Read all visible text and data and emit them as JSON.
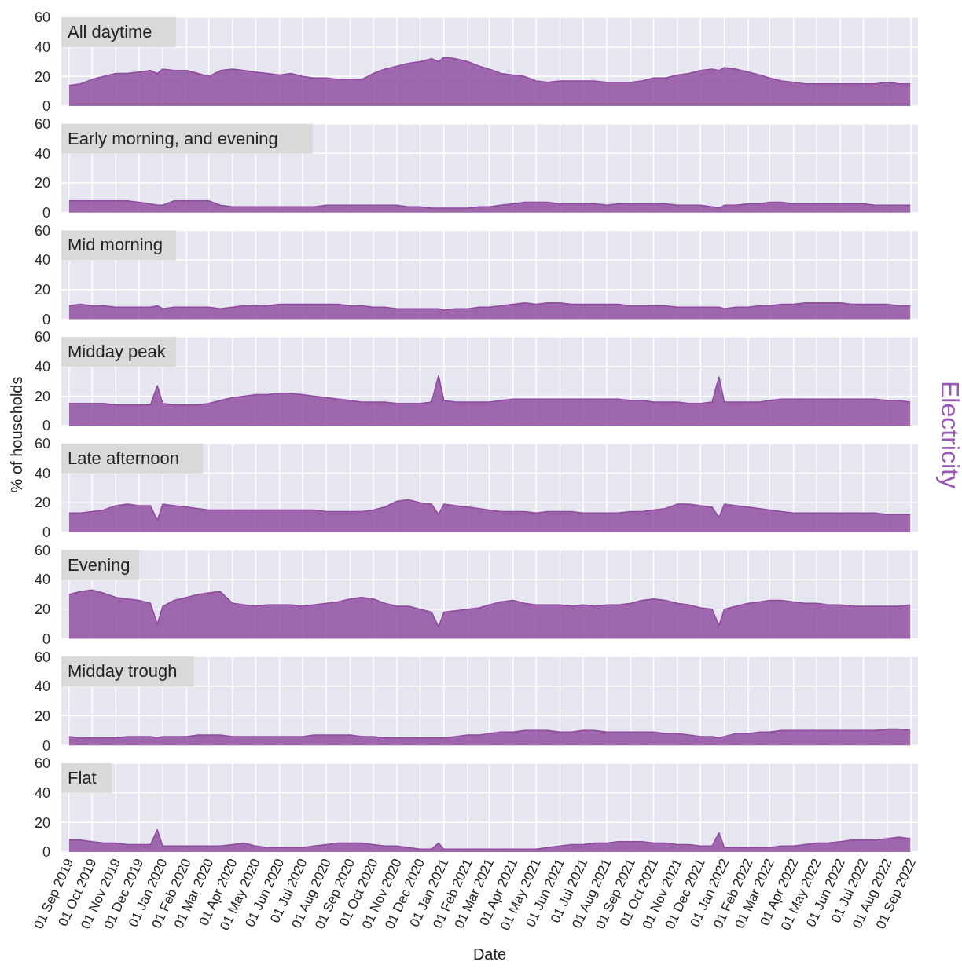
{
  "chart_data": [
    {
      "type": "area",
      "title": "All daytime",
      "grid": true,
      "tick_labels": "y",
      "ylim": [
        0,
        60
      ],
      "yticks": [
        0,
        20,
        40,
        60
      ],
      "xlim": [
        "2019-08-22",
        "2022-09-10"
      ],
      "xticks": [
        "2019-09-01",
        "2019-10-01",
        "2019-11-01",
        "2019-12-01",
        "2020-01-01",
        "2020-02-01",
        "2020-03-01",
        "2020-04-01",
        "2020-05-01",
        "2020-06-01",
        "2020-07-01",
        "2020-08-01",
        "2020-09-01",
        "2020-10-01",
        "2020-11-01",
        "2020-12-01",
        "2021-01-01",
        "2021-02-01",
        "2021-03-01",
        "2021-04-01",
        "2021-05-01",
        "2021-06-01",
        "2021-07-01",
        "2021-08-01",
        "2021-09-01",
        "2021-10-01",
        "2021-11-01",
        "2021-12-01",
        "2022-01-01",
        "2022-02-01",
        "2022-03-01",
        "2022-04-01",
        "2022-05-01",
        "2022-06-01",
        "2022-07-01",
        "2022-08-01",
        "2022-09-01"
      ],
      "x": [
        "2019-09-01",
        "2019-09-16",
        "2019-10-01",
        "2019-10-16",
        "2019-11-01",
        "2019-11-16",
        "2019-12-01",
        "2019-12-16",
        "2019-12-25",
        "2020-01-01",
        "2020-01-16",
        "2020-02-01",
        "2020-02-16",
        "2020-03-01",
        "2020-03-16",
        "2020-04-01",
        "2020-04-16",
        "2020-05-01",
        "2020-05-16",
        "2020-06-01",
        "2020-06-16",
        "2020-07-01",
        "2020-07-16",
        "2020-08-01",
        "2020-08-16",
        "2020-09-01",
        "2020-09-16",
        "2020-10-01",
        "2020-10-16",
        "2020-11-01",
        "2020-11-16",
        "2020-12-01",
        "2020-12-16",
        "2020-12-25",
        "2021-01-01",
        "2021-01-16",
        "2021-02-01",
        "2021-02-16",
        "2021-03-01",
        "2021-03-16",
        "2021-04-01",
        "2021-04-16",
        "2021-05-01",
        "2021-05-16",
        "2021-06-01",
        "2021-06-16",
        "2021-07-01",
        "2021-07-16",
        "2021-08-01",
        "2021-08-16",
        "2021-09-01",
        "2021-09-16",
        "2021-10-01",
        "2021-10-16",
        "2021-11-01",
        "2021-11-16",
        "2021-12-01",
        "2021-12-16",
        "2021-12-25",
        "2022-01-01",
        "2022-01-16",
        "2022-02-01",
        "2022-02-16",
        "2022-03-01",
        "2022-03-16",
        "2022-04-01",
        "2022-04-16",
        "2022-05-01",
        "2022-05-16",
        "2022-06-01",
        "2022-06-16",
        "2022-07-01",
        "2022-07-16",
        "2022-08-01",
        "2022-08-16",
        "2022-08-31"
      ],
      "series": [
        {
          "color": "#8e4a9e",
          "values": [
            14,
            15,
            18,
            20,
            22,
            22,
            23,
            24,
            22,
            25,
            24,
            24,
            22,
            20,
            24,
            25,
            24,
            23,
            22,
            21,
            22,
            20,
            19,
            19,
            18,
            18,
            18,
            22,
            25,
            27,
            29,
            30,
            32,
            30,
            33,
            32,
            30,
            27,
            25,
            22,
            21,
            20,
            17,
            16,
            17,
            17,
            17,
            17,
            16,
            16,
            16,
            17,
            19,
            19,
            21,
            22,
            24,
            25,
            24,
            26,
            25,
            23,
            21,
            19,
            17,
            16,
            15,
            15,
            15,
            15,
            15,
            15,
            15,
            16,
            15,
            15
          ]
        }
      ]
    },
    {
      "type": "area",
      "title": "Early morning, and evening",
      "grid": true,
      "tick_labels": "y",
      "ylim": [
        0,
        60
      ],
      "yticks": [
        0,
        20,
        40,
        60
      ],
      "xlim": [
        "2019-08-22",
        "2022-09-10"
      ],
      "xticks": [
        "2019-09-01",
        "2019-10-01",
        "2019-11-01",
        "2019-12-01",
        "2020-01-01",
        "2020-02-01",
        "2020-03-01",
        "2020-04-01",
        "2020-05-01",
        "2020-06-01",
        "2020-07-01",
        "2020-08-01",
        "2020-09-01",
        "2020-10-01",
        "2020-11-01",
        "2020-12-01",
        "2021-01-01",
        "2021-02-01",
        "2021-03-01",
        "2021-04-01",
        "2021-05-01",
        "2021-06-01",
        "2021-07-01",
        "2021-08-01",
        "2021-09-01",
        "2021-10-01",
        "2021-11-01",
        "2021-12-01",
        "2022-01-01",
        "2022-02-01",
        "2022-03-01",
        "2022-04-01",
        "2022-05-01",
        "2022-06-01",
        "2022-07-01",
        "2022-08-01",
        "2022-09-01"
      ],
      "x": [
        "2019-09-01",
        "2019-09-16",
        "2019-10-01",
        "2019-10-16",
        "2019-11-01",
        "2019-11-16",
        "2019-12-01",
        "2019-12-16",
        "2019-12-25",
        "2020-01-01",
        "2020-01-16",
        "2020-02-01",
        "2020-02-16",
        "2020-03-01",
        "2020-03-16",
        "2020-04-01",
        "2020-04-16",
        "2020-05-01",
        "2020-05-16",
        "2020-06-01",
        "2020-06-16",
        "2020-07-01",
        "2020-07-16",
        "2020-08-01",
        "2020-08-16",
        "2020-09-01",
        "2020-09-16",
        "2020-10-01",
        "2020-10-16",
        "2020-11-01",
        "2020-11-16",
        "2020-12-01",
        "2020-12-16",
        "2020-12-25",
        "2021-01-01",
        "2021-01-16",
        "2021-02-01",
        "2021-02-16",
        "2021-03-01",
        "2021-03-16",
        "2021-04-01",
        "2021-04-16",
        "2021-05-01",
        "2021-05-16",
        "2021-06-01",
        "2021-06-16",
        "2021-07-01",
        "2021-07-16",
        "2021-08-01",
        "2021-08-16",
        "2021-09-01",
        "2021-09-16",
        "2021-10-01",
        "2021-10-16",
        "2021-11-01",
        "2021-11-16",
        "2021-12-01",
        "2021-12-16",
        "2021-12-25",
        "2022-01-01",
        "2022-01-16",
        "2022-02-01",
        "2022-02-16",
        "2022-03-01",
        "2022-03-16",
        "2022-04-01",
        "2022-04-16",
        "2022-05-01",
        "2022-05-16",
        "2022-06-01",
        "2022-06-16",
        "2022-07-01",
        "2022-07-16",
        "2022-08-01",
        "2022-08-16",
        "2022-08-31"
      ],
      "series": [
        {
          "color": "#8e4a9e",
          "values": [
            8,
            8,
            8,
            8,
            8,
            8,
            7,
            6,
            5,
            5,
            8,
            8,
            8,
            8,
            5,
            4,
            4,
            4,
            4,
            4,
            4,
            4,
            4,
            5,
            5,
            5,
            5,
            5,
            5,
            5,
            4,
            4,
            3,
            3,
            3,
            3,
            3,
            4,
            4,
            5,
            6,
            7,
            7,
            7,
            6,
            6,
            6,
            6,
            5,
            6,
            6,
            6,
            6,
            6,
            5,
            5,
            5,
            4,
            3,
            5,
            5,
            6,
            6,
            7,
            7,
            6,
            6,
            6,
            6,
            6,
            6,
            6,
            5,
            5,
            5,
            5
          ]
        }
      ]
    },
    {
      "type": "area",
      "title": "Mid morning",
      "grid": true,
      "tick_labels": "y",
      "ylim": [
        0,
        60
      ],
      "yticks": [
        0,
        20,
        40,
        60
      ],
      "xlim": [
        "2019-08-22",
        "2022-09-10"
      ],
      "xticks": [
        "2019-09-01",
        "2019-10-01",
        "2019-11-01",
        "2019-12-01",
        "2020-01-01",
        "2020-02-01",
        "2020-03-01",
        "2020-04-01",
        "2020-05-01",
        "2020-06-01",
        "2020-07-01",
        "2020-08-01",
        "2020-09-01",
        "2020-10-01",
        "2020-11-01",
        "2020-12-01",
        "2021-01-01",
        "2021-02-01",
        "2021-03-01",
        "2021-04-01",
        "2021-05-01",
        "2021-06-01",
        "2021-07-01",
        "2021-08-01",
        "2021-09-01",
        "2021-10-01",
        "2021-11-01",
        "2021-12-01",
        "2022-01-01",
        "2022-02-01",
        "2022-03-01",
        "2022-04-01",
        "2022-05-01",
        "2022-06-01",
        "2022-07-01",
        "2022-08-01",
        "2022-09-01"
      ],
      "x": [
        "2019-09-01",
        "2019-09-16",
        "2019-10-01",
        "2019-10-16",
        "2019-11-01",
        "2019-11-16",
        "2019-12-01",
        "2019-12-16",
        "2019-12-25",
        "2020-01-01",
        "2020-01-16",
        "2020-02-01",
        "2020-02-16",
        "2020-03-01",
        "2020-03-16",
        "2020-04-01",
        "2020-04-16",
        "2020-05-01",
        "2020-05-16",
        "2020-06-01",
        "2020-06-16",
        "2020-07-01",
        "2020-07-16",
        "2020-08-01",
        "2020-08-16",
        "2020-09-01",
        "2020-09-16",
        "2020-10-01",
        "2020-10-16",
        "2020-11-01",
        "2020-11-16",
        "2020-12-01",
        "2020-12-16",
        "2020-12-25",
        "2021-01-01",
        "2021-01-16",
        "2021-02-01",
        "2021-02-16",
        "2021-03-01",
        "2021-03-16",
        "2021-04-01",
        "2021-04-16",
        "2021-05-01",
        "2021-05-16",
        "2021-06-01",
        "2021-06-16",
        "2021-07-01",
        "2021-07-16",
        "2021-08-01",
        "2021-08-16",
        "2021-09-01",
        "2021-09-16",
        "2021-10-01",
        "2021-10-16",
        "2021-11-01",
        "2021-11-16",
        "2021-12-01",
        "2021-12-16",
        "2021-12-25",
        "2022-01-01",
        "2022-01-16",
        "2022-02-01",
        "2022-02-16",
        "2022-03-01",
        "2022-03-16",
        "2022-04-01",
        "2022-04-16",
        "2022-05-01",
        "2022-05-16",
        "2022-06-01",
        "2022-06-16",
        "2022-07-01",
        "2022-07-16",
        "2022-08-01",
        "2022-08-16",
        "2022-08-31"
      ],
      "series": [
        {
          "color": "#8e4a9e",
          "values": [
            9,
            10,
            9,
            9,
            8,
            8,
            8,
            8,
            9,
            7,
            8,
            8,
            8,
            8,
            7,
            8,
            9,
            9,
            9,
            10,
            10,
            10,
            10,
            10,
            10,
            9,
            9,
            8,
            8,
            7,
            7,
            7,
            7,
            7,
            6,
            7,
            7,
            8,
            8,
            9,
            10,
            11,
            10,
            11,
            11,
            10,
            10,
            10,
            10,
            10,
            9,
            9,
            9,
            9,
            8,
            8,
            8,
            8,
            8,
            7,
            8,
            8,
            9,
            9,
            10,
            10,
            11,
            11,
            11,
            11,
            10,
            10,
            10,
            10,
            9,
            9
          ]
        }
      ]
    },
    {
      "type": "area",
      "title": "Midday peak",
      "ylabel": "% of households",
      "y2label": "Electricity",
      "grid": true,
      "tick_labels": "y",
      "ylim": [
        0,
        60
      ],
      "yticks": [
        0,
        20,
        40,
        60
      ],
      "xlim": [
        "2019-08-22",
        "2022-09-10"
      ],
      "xticks": [
        "2019-09-01",
        "2019-10-01",
        "2019-11-01",
        "2019-12-01",
        "2020-01-01",
        "2020-02-01",
        "2020-03-01",
        "2020-04-01",
        "2020-05-01",
        "2020-06-01",
        "2020-07-01",
        "2020-08-01",
        "2020-09-01",
        "2020-10-01",
        "2020-11-01",
        "2020-12-01",
        "2021-01-01",
        "2021-02-01",
        "2021-03-01",
        "2021-04-01",
        "2021-05-01",
        "2021-06-01",
        "2021-07-01",
        "2021-08-01",
        "2021-09-01",
        "2021-10-01",
        "2021-11-01",
        "2021-12-01",
        "2022-01-01",
        "2022-02-01",
        "2022-03-01",
        "2022-04-01",
        "2022-05-01",
        "2022-06-01",
        "2022-07-01",
        "2022-08-01",
        "2022-09-01"
      ],
      "x": [
        "2019-09-01",
        "2019-09-16",
        "2019-10-01",
        "2019-10-16",
        "2019-11-01",
        "2019-11-16",
        "2019-12-01",
        "2019-12-16",
        "2019-12-25",
        "2020-01-01",
        "2020-01-16",
        "2020-02-01",
        "2020-02-16",
        "2020-03-01",
        "2020-03-16",
        "2020-04-01",
        "2020-04-16",
        "2020-05-01",
        "2020-05-16",
        "2020-06-01",
        "2020-06-16",
        "2020-07-01",
        "2020-07-16",
        "2020-08-01",
        "2020-08-16",
        "2020-09-01",
        "2020-09-16",
        "2020-10-01",
        "2020-10-16",
        "2020-11-01",
        "2020-11-16",
        "2020-12-01",
        "2020-12-16",
        "2020-12-25",
        "2021-01-01",
        "2021-01-16",
        "2021-02-01",
        "2021-02-16",
        "2021-03-01",
        "2021-03-16",
        "2021-04-01",
        "2021-04-16",
        "2021-05-01",
        "2021-05-16",
        "2021-06-01",
        "2021-06-16",
        "2021-07-01",
        "2021-07-16",
        "2021-08-01",
        "2021-08-16",
        "2021-09-01",
        "2021-09-16",
        "2021-10-01",
        "2021-10-16",
        "2021-11-01",
        "2021-11-16",
        "2021-12-01",
        "2021-12-16",
        "2021-12-25",
        "2022-01-01",
        "2022-01-16",
        "2022-02-01",
        "2022-02-16",
        "2022-03-01",
        "2022-03-16",
        "2022-04-01",
        "2022-04-16",
        "2022-05-01",
        "2022-05-16",
        "2022-06-01",
        "2022-06-16",
        "2022-07-01",
        "2022-07-16",
        "2022-08-01",
        "2022-08-16",
        "2022-08-31"
      ],
      "series": [
        {
          "color": "#8e4a9e",
          "values": [
            15,
            15,
            15,
            15,
            14,
            14,
            14,
            14,
            27,
            15,
            14,
            14,
            14,
            15,
            17,
            19,
            20,
            21,
            21,
            22,
            22,
            21,
            20,
            19,
            18,
            17,
            16,
            16,
            16,
            15,
            15,
            15,
            16,
            34,
            17,
            16,
            16,
            16,
            16,
            17,
            18,
            18,
            18,
            18,
            18,
            18,
            18,
            18,
            18,
            18,
            17,
            17,
            16,
            16,
            16,
            15,
            15,
            16,
            33,
            16,
            16,
            16,
            16,
            17,
            18,
            18,
            18,
            18,
            18,
            18,
            18,
            18,
            18,
            17,
            17,
            16
          ]
        }
      ]
    },
    {
      "type": "area",
      "title": "Late afternoon",
      "grid": true,
      "tick_labels": "y",
      "ylim": [
        0,
        60
      ],
      "yticks": [
        0,
        20,
        40,
        60
      ],
      "xlim": [
        "2019-08-22",
        "2022-09-10"
      ],
      "xticks": [
        "2019-09-01",
        "2019-10-01",
        "2019-11-01",
        "2019-12-01",
        "2020-01-01",
        "2020-02-01",
        "2020-03-01",
        "2020-04-01",
        "2020-05-01",
        "2020-06-01",
        "2020-07-01",
        "2020-08-01",
        "2020-09-01",
        "2020-10-01",
        "2020-11-01",
        "2020-12-01",
        "2021-01-01",
        "2021-02-01",
        "2021-03-01",
        "2021-04-01",
        "2021-05-01",
        "2021-06-01",
        "2021-07-01",
        "2021-08-01",
        "2021-09-01",
        "2021-10-01",
        "2021-11-01",
        "2021-12-01",
        "2022-01-01",
        "2022-02-01",
        "2022-03-01",
        "2022-04-01",
        "2022-05-01",
        "2022-06-01",
        "2022-07-01",
        "2022-08-01",
        "2022-09-01"
      ],
      "x": [
        "2019-09-01",
        "2019-09-16",
        "2019-10-01",
        "2019-10-16",
        "2019-11-01",
        "2019-11-16",
        "2019-12-01",
        "2019-12-16",
        "2019-12-25",
        "2020-01-01",
        "2020-01-16",
        "2020-02-01",
        "2020-02-16",
        "2020-03-01",
        "2020-03-16",
        "2020-04-01",
        "2020-04-16",
        "2020-05-01",
        "2020-05-16",
        "2020-06-01",
        "2020-06-16",
        "2020-07-01",
        "2020-07-16",
        "2020-08-01",
        "2020-08-16",
        "2020-09-01",
        "2020-09-16",
        "2020-10-01",
        "2020-10-16",
        "2020-11-01",
        "2020-11-16",
        "2020-12-01",
        "2020-12-16",
        "2020-12-25",
        "2021-01-01",
        "2021-01-16",
        "2021-02-01",
        "2021-02-16",
        "2021-03-01",
        "2021-03-16",
        "2021-04-01",
        "2021-04-16",
        "2021-05-01",
        "2021-05-16",
        "2021-06-01",
        "2021-06-16",
        "2021-07-01",
        "2021-07-16",
        "2021-08-01",
        "2021-08-16",
        "2021-09-01",
        "2021-09-16",
        "2021-10-01",
        "2021-10-16",
        "2021-11-01",
        "2021-11-16",
        "2021-12-01",
        "2021-12-16",
        "2021-12-25",
        "2022-01-01",
        "2022-01-16",
        "2022-02-01",
        "2022-02-16",
        "2022-03-01",
        "2022-03-16",
        "2022-04-01",
        "2022-04-16",
        "2022-05-01",
        "2022-05-16",
        "2022-06-01",
        "2022-06-16",
        "2022-07-01",
        "2022-07-16",
        "2022-08-01",
        "2022-08-16",
        "2022-08-31"
      ],
      "series": [
        {
          "color": "#8e4a9e",
          "values": [
            13,
            13,
            14,
            15,
            18,
            19,
            18,
            18,
            8,
            19,
            18,
            17,
            16,
            15,
            15,
            15,
            15,
            15,
            15,
            15,
            15,
            15,
            15,
            14,
            14,
            14,
            14,
            15,
            17,
            21,
            22,
            20,
            19,
            12,
            19,
            18,
            17,
            16,
            15,
            14,
            14,
            14,
            13,
            14,
            14,
            14,
            13,
            13,
            13,
            13,
            14,
            14,
            15,
            16,
            19,
            19,
            18,
            17,
            10,
            19,
            18,
            17,
            16,
            15,
            14,
            13,
            13,
            13,
            13,
            13,
            13,
            13,
            13,
            12,
            12,
            12
          ]
        }
      ]
    },
    {
      "type": "area",
      "title": "Evening",
      "grid": true,
      "tick_labels": "y",
      "ylim": [
        0,
        60
      ],
      "yticks": [
        0,
        20,
        40,
        60
      ],
      "xlim": [
        "2019-08-22",
        "2022-09-10"
      ],
      "xticks": [
        "2019-09-01",
        "2019-10-01",
        "2019-11-01",
        "2019-12-01",
        "2020-01-01",
        "2020-02-01",
        "2020-03-01",
        "2020-04-01",
        "2020-05-01",
        "2020-06-01",
        "2020-07-01",
        "2020-08-01",
        "2020-09-01",
        "2020-10-01",
        "2020-11-01",
        "2020-12-01",
        "2021-01-01",
        "2021-02-01",
        "2021-03-01",
        "2021-04-01",
        "2021-05-01",
        "2021-06-01",
        "2021-07-01",
        "2021-08-01",
        "2021-09-01",
        "2021-10-01",
        "2021-11-01",
        "2021-12-01",
        "2022-01-01",
        "2022-02-01",
        "2022-03-01",
        "2022-04-01",
        "2022-05-01",
        "2022-06-01",
        "2022-07-01",
        "2022-08-01",
        "2022-09-01"
      ],
      "x": [
        "2019-09-01",
        "2019-09-16",
        "2019-10-01",
        "2019-10-16",
        "2019-11-01",
        "2019-11-16",
        "2019-12-01",
        "2019-12-16",
        "2019-12-25",
        "2020-01-01",
        "2020-01-16",
        "2020-02-01",
        "2020-02-16",
        "2020-03-01",
        "2020-03-16",
        "2020-04-01",
        "2020-04-16",
        "2020-05-01",
        "2020-05-16",
        "2020-06-01",
        "2020-06-16",
        "2020-07-01",
        "2020-07-16",
        "2020-08-01",
        "2020-08-16",
        "2020-09-01",
        "2020-09-16",
        "2020-10-01",
        "2020-10-16",
        "2020-11-01",
        "2020-11-16",
        "2020-12-01",
        "2020-12-16",
        "2020-12-25",
        "2021-01-01",
        "2021-01-16",
        "2021-02-01",
        "2021-02-16",
        "2021-03-01",
        "2021-03-16",
        "2021-04-01",
        "2021-04-16",
        "2021-05-01",
        "2021-05-16",
        "2021-06-01",
        "2021-06-16",
        "2021-07-01",
        "2021-07-16",
        "2021-08-01",
        "2021-08-16",
        "2021-09-01",
        "2021-09-16",
        "2021-10-01",
        "2021-10-16",
        "2021-11-01",
        "2021-11-16",
        "2021-12-01",
        "2021-12-16",
        "2021-12-25",
        "2022-01-01",
        "2022-01-16",
        "2022-02-01",
        "2022-02-16",
        "2022-03-01",
        "2022-03-16",
        "2022-04-01",
        "2022-04-16",
        "2022-05-01",
        "2022-05-16",
        "2022-06-01",
        "2022-06-16",
        "2022-07-01",
        "2022-07-16",
        "2022-08-01",
        "2022-08-16",
        "2022-08-31"
      ],
      "series": [
        {
          "color": "#8e4a9e",
          "values": [
            30,
            32,
            33,
            31,
            28,
            27,
            26,
            24,
            10,
            22,
            26,
            28,
            30,
            31,
            32,
            24,
            23,
            22,
            23,
            23,
            23,
            22,
            23,
            24,
            25,
            27,
            28,
            27,
            24,
            22,
            22,
            20,
            18,
            8,
            18,
            19,
            20,
            21,
            23,
            25,
            26,
            24,
            23,
            23,
            23,
            22,
            23,
            22,
            23,
            23,
            24,
            26,
            27,
            26,
            24,
            23,
            21,
            20,
            9,
            20,
            22,
            24,
            25,
            26,
            26,
            25,
            24,
            24,
            23,
            23,
            22,
            22,
            22,
            22,
            22,
            23
          ]
        }
      ]
    },
    {
      "type": "area",
      "title": "Midday trough",
      "grid": true,
      "tick_labels": "y",
      "ylim": [
        0,
        60
      ],
      "yticks": [
        0,
        20,
        40,
        60
      ],
      "xlim": [
        "2019-08-22",
        "2022-09-10"
      ],
      "xticks": [
        "2019-09-01",
        "2019-10-01",
        "2019-11-01",
        "2019-12-01",
        "2020-01-01",
        "2020-02-01",
        "2020-03-01",
        "2020-04-01",
        "2020-05-01",
        "2020-06-01",
        "2020-07-01",
        "2020-08-01",
        "2020-09-01",
        "2020-10-01",
        "2020-11-01",
        "2020-12-01",
        "2021-01-01",
        "2021-02-01",
        "2021-03-01",
        "2021-04-01",
        "2021-05-01",
        "2021-06-01",
        "2021-07-01",
        "2021-08-01",
        "2021-09-01",
        "2021-10-01",
        "2021-11-01",
        "2021-12-01",
        "2022-01-01",
        "2022-02-01",
        "2022-03-01",
        "2022-04-01",
        "2022-05-01",
        "2022-06-01",
        "2022-07-01",
        "2022-08-01",
        "2022-09-01"
      ],
      "x": [
        "2019-09-01",
        "2019-09-16",
        "2019-10-01",
        "2019-10-16",
        "2019-11-01",
        "2019-11-16",
        "2019-12-01",
        "2019-12-16",
        "2019-12-25",
        "2020-01-01",
        "2020-01-16",
        "2020-02-01",
        "2020-02-16",
        "2020-03-01",
        "2020-03-16",
        "2020-04-01",
        "2020-04-16",
        "2020-05-01",
        "2020-05-16",
        "2020-06-01",
        "2020-06-16",
        "2020-07-01",
        "2020-07-16",
        "2020-08-01",
        "2020-08-16",
        "2020-09-01",
        "2020-09-16",
        "2020-10-01",
        "2020-10-16",
        "2020-11-01",
        "2020-11-16",
        "2020-12-01",
        "2020-12-16",
        "2020-12-25",
        "2021-01-01",
        "2021-01-16",
        "2021-02-01",
        "2021-02-16",
        "2021-03-01",
        "2021-03-16",
        "2021-04-01",
        "2021-04-16",
        "2021-05-01",
        "2021-05-16",
        "2021-06-01",
        "2021-06-16",
        "2021-07-01",
        "2021-07-16",
        "2021-08-01",
        "2021-08-16",
        "2021-09-01",
        "2021-09-16",
        "2021-10-01",
        "2021-10-16",
        "2021-11-01",
        "2021-11-16",
        "2021-12-01",
        "2021-12-16",
        "2021-12-25",
        "2022-01-01",
        "2022-01-16",
        "2022-02-01",
        "2022-02-16",
        "2022-03-01",
        "2022-03-16",
        "2022-04-01",
        "2022-04-16",
        "2022-05-01",
        "2022-05-16",
        "2022-06-01",
        "2022-06-16",
        "2022-07-01",
        "2022-07-16",
        "2022-08-01",
        "2022-08-16",
        "2022-08-31"
      ],
      "series": [
        {
          "color": "#8e4a9e",
          "values": [
            6,
            5,
            5,
            5,
            5,
            6,
            6,
            6,
            5,
            6,
            6,
            6,
            7,
            7,
            7,
            6,
            6,
            6,
            6,
            6,
            6,
            6,
            7,
            7,
            7,
            7,
            6,
            6,
            5,
            5,
            5,
            5,
            5,
            5,
            5,
            6,
            7,
            7,
            8,
            9,
            9,
            10,
            10,
            10,
            9,
            9,
            10,
            10,
            9,
            9,
            9,
            9,
            9,
            8,
            8,
            7,
            6,
            6,
            5,
            6,
            8,
            8,
            9,
            9,
            10,
            10,
            10,
            10,
            10,
            10,
            10,
            10,
            10,
            11,
            11,
            10
          ]
        }
      ]
    },
    {
      "type": "area",
      "title": "Flat",
      "xlabel": "Date",
      "grid": true,
      "ylim": [
        0,
        60
      ],
      "yticks": [
        0,
        20,
        40,
        60
      ],
      "xlim": [
        "2019-08-22",
        "2022-09-10"
      ],
      "xticks": [
        {
          "value": "2019-09-01",
          "label": "01 Sep 2019"
        },
        {
          "value": "2019-10-01",
          "label": "01 Oct 2019"
        },
        {
          "value": "2019-11-01",
          "label": "01 Nov 2019"
        },
        {
          "value": "2019-12-01",
          "label": "01 Dec 2019"
        },
        {
          "value": "2020-01-01",
          "label": "01 Jan 2020"
        },
        {
          "value": "2020-02-01",
          "label": "01 Feb 2020"
        },
        {
          "value": "2020-03-01",
          "label": "01 Mar 2020"
        },
        {
          "value": "2020-04-01",
          "label": "01 Apr 2020"
        },
        {
          "value": "2020-05-01",
          "label": "01 May 2020"
        },
        {
          "value": "2020-06-01",
          "label": "01 Jun 2020"
        },
        {
          "value": "2020-07-01",
          "label": "01 Jul 2020"
        },
        {
          "value": "2020-08-01",
          "label": "01 Aug 2020"
        },
        {
          "value": "2020-09-01",
          "label": "01 Sep 2020"
        },
        {
          "value": "2020-10-01",
          "label": "01 Oct 2020"
        },
        {
          "value": "2020-11-01",
          "label": "01 Nov 2020"
        },
        {
          "value": "2020-12-01",
          "label": "01 Dec 2020"
        },
        {
          "value": "2021-01-01",
          "label": "01 Jan 2021"
        },
        {
          "value": "2021-02-01",
          "label": "01 Feb 2021"
        },
        {
          "value": "2021-03-01",
          "label": "01 Mar 2021"
        },
        {
          "value": "2021-04-01",
          "label": "01 Apr 2021"
        },
        {
          "value": "2021-05-01",
          "label": "01 May 2021"
        },
        {
          "value": "2021-06-01",
          "label": "01 Jun 2021"
        },
        {
          "value": "2021-07-01",
          "label": "01 Jul 2021"
        },
        {
          "value": "2021-08-01",
          "label": "01 Aug 2021"
        },
        {
          "value": "2021-09-01",
          "label": "01 Sep 2021"
        },
        {
          "value": "2021-10-01",
          "label": "01 Oct 2021"
        },
        {
          "value": "2021-11-01",
          "label": "01 Nov 2021"
        },
        {
          "value": "2021-12-01",
          "label": "01 Dec 2021"
        },
        {
          "value": "2022-01-01",
          "label": "01 Jan 2022"
        },
        {
          "value": "2022-02-01",
          "label": "01 Feb 2022"
        },
        {
          "value": "2022-03-01",
          "label": "01 Mar 2022"
        },
        {
          "value": "2022-04-01",
          "label": "01 Apr 2022"
        },
        {
          "value": "2022-05-01",
          "label": "01 May 2022"
        },
        {
          "value": "2022-06-01",
          "label": "01 Jun 2022"
        },
        {
          "value": "2022-07-01",
          "label": "01 Jul 2022"
        },
        {
          "value": "2022-08-01",
          "label": "01 Aug 2022"
        },
        {
          "value": "2022-09-01",
          "label": "01 Sep 2022"
        }
      ],
      "x": [
        "2019-09-01",
        "2019-09-16",
        "2019-10-01",
        "2019-10-16",
        "2019-11-01",
        "2019-11-16",
        "2019-12-01",
        "2019-12-16",
        "2019-12-25",
        "2020-01-01",
        "2020-01-16",
        "2020-02-01",
        "2020-02-16",
        "2020-03-01",
        "2020-03-16",
        "2020-04-01",
        "2020-04-16",
        "2020-05-01",
        "2020-05-16",
        "2020-06-01",
        "2020-06-16",
        "2020-07-01",
        "2020-07-16",
        "2020-08-01",
        "2020-08-16",
        "2020-09-01",
        "2020-09-16",
        "2020-10-01",
        "2020-10-16",
        "2020-11-01",
        "2020-11-16",
        "2020-12-01",
        "2020-12-16",
        "2020-12-25",
        "2021-01-01",
        "2021-01-16",
        "2021-02-01",
        "2021-02-16",
        "2021-03-01",
        "2021-03-16",
        "2021-04-01",
        "2021-04-16",
        "2021-05-01",
        "2021-05-16",
        "2021-06-01",
        "2021-06-16",
        "2021-07-01",
        "2021-07-16",
        "2021-08-01",
        "2021-08-16",
        "2021-09-01",
        "2021-09-16",
        "2021-10-01",
        "2021-10-16",
        "2021-11-01",
        "2021-11-16",
        "2021-12-01",
        "2021-12-16",
        "2021-12-25",
        "2022-01-01",
        "2022-01-16",
        "2022-02-01",
        "2022-02-16",
        "2022-03-01",
        "2022-03-16",
        "2022-04-01",
        "2022-04-16",
        "2022-05-01",
        "2022-05-16",
        "2022-06-01",
        "2022-06-16",
        "2022-07-01",
        "2022-07-16",
        "2022-08-01",
        "2022-08-16",
        "2022-08-31"
      ],
      "series": [
        {
          "color": "#8e4a9e",
          "values": [
            8,
            8,
            7,
            6,
            6,
            5,
            5,
            5,
            15,
            4,
            4,
            4,
            4,
            4,
            4,
            5,
            6,
            4,
            3,
            3,
            3,
            3,
            4,
            5,
            6,
            6,
            6,
            5,
            4,
            4,
            3,
            2,
            2,
            6,
            2,
            2,
            2,
            2,
            2,
            2,
            2,
            2,
            2,
            3,
            4,
            5,
            5,
            6,
            6,
            7,
            7,
            7,
            6,
            6,
            5,
            5,
            4,
            4,
            13,
            3,
            3,
            3,
            3,
            3,
            4,
            4,
            5,
            6,
            6,
            7,
            8,
            8,
            8,
            9,
            10,
            9
          ]
        }
      ]
    }
  ]
}
